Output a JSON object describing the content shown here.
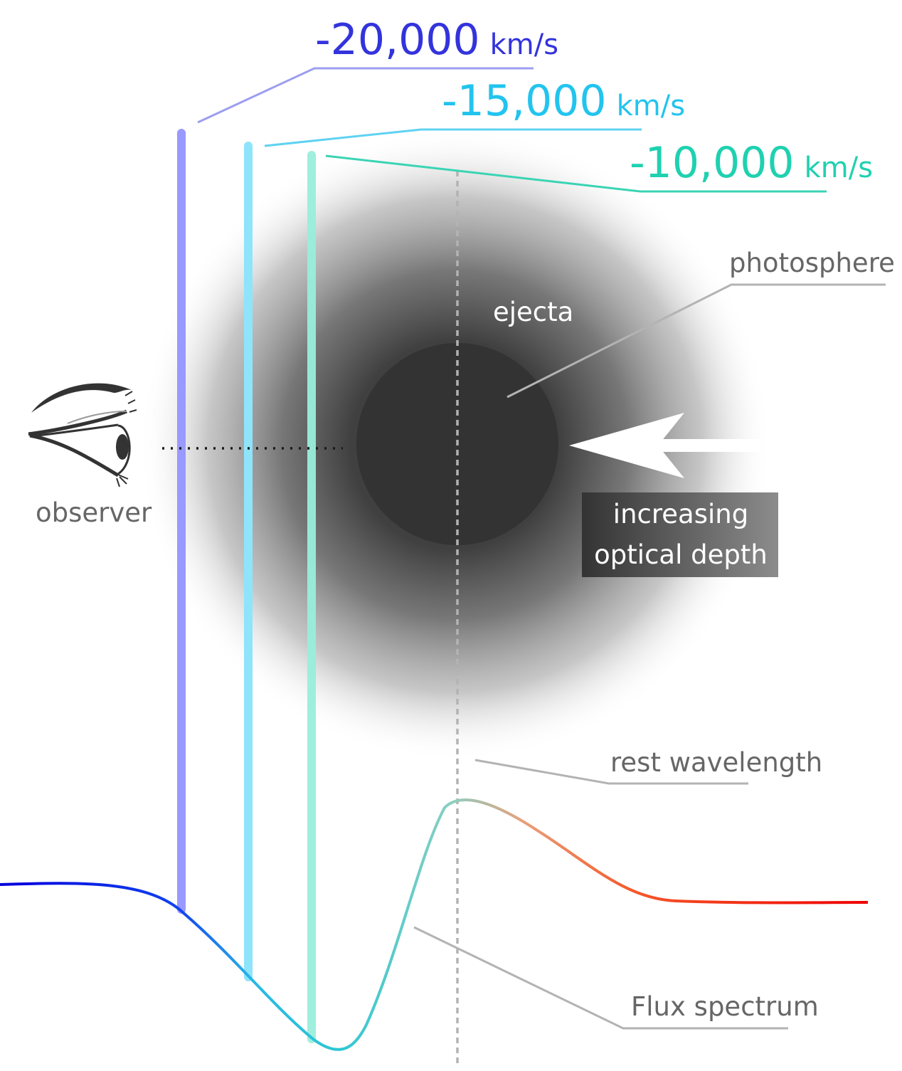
{
  "velocities": [
    {
      "number": "-20,000",
      "unit": "km/s",
      "color": "#3333dd",
      "bar_color": "#9999ff",
      "leader_color": "#9c9ef0"
    },
    {
      "number": "-15,000",
      "unit": "km/s",
      "color": "#22c4ee",
      "bar_color": "#8ee4fa",
      "leader_color": "#5fd2f2"
    },
    {
      "number": "-10,000",
      "unit": "km/s",
      "color": "#1fd1b0",
      "bar_color": "#9aeedd",
      "leader_color": "#3ad4b4"
    }
  ],
  "labels": {
    "photosphere": "photosphere",
    "ejecta": "ejecta",
    "observer": "observer",
    "increasing_line1": "increasing",
    "increasing_line2": "optical depth",
    "rest_wavelength": "rest wavelength",
    "flux_spectrum": "Flux spectrum"
  },
  "icons": {
    "observer": "eye-icon",
    "direction": "arrow-left-icon"
  },
  "colors": {
    "photosphere": "#333333",
    "ejecta_core": "#333333",
    "label_text": "#666666",
    "leader_gray": "#b3b3b3",
    "depth_box_start": "#333333",
    "depth_box_end": "#8c8c8c",
    "spectrum_blue": "#0000dd",
    "spectrum_cyan": "#27c3e0",
    "spectrum_teal": "#66c8b6",
    "spectrum_orange": "#f07a3a",
    "spectrum_red": "#ee0000"
  }
}
